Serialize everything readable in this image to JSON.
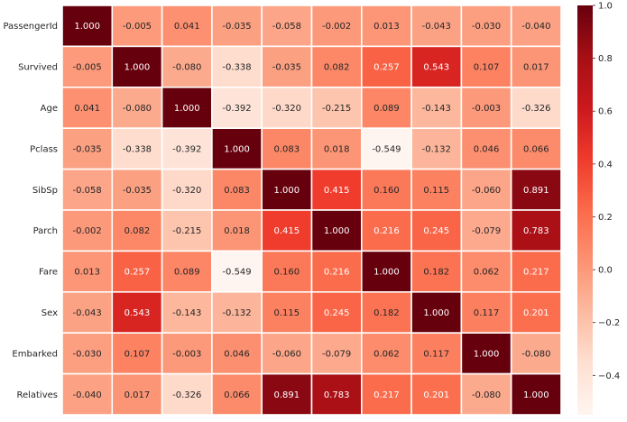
{
  "chart_data": {
    "type": "heatmap",
    "title": "",
    "xlabel": "",
    "ylabel": "",
    "labels": [
      "PassengerId",
      "Survived",
      "Age",
      "Pclass",
      "SibSp",
      "Parch",
      "Fare",
      "Sex",
      "Embarked",
      "Relatives"
    ],
    "values": [
      [
        1.0,
        -0.005,
        0.041,
        -0.035,
        -0.058,
        -0.002,
        0.013,
        -0.043,
        -0.03,
        -0.04
      ],
      [
        -0.005,
        1.0,
        -0.08,
        -0.338,
        -0.035,
        0.082,
        0.257,
        0.543,
        0.107,
        0.017
      ],
      [
        0.041,
        -0.08,
        1.0,
        -0.392,
        -0.32,
        -0.215,
        0.089,
        -0.143,
        -0.003,
        -0.326
      ],
      [
        -0.035,
        -0.338,
        -0.392,
        1.0,
        0.083,
        0.018,
        -0.549,
        -0.132,
        0.046,
        0.066
      ],
      [
        -0.058,
        -0.035,
        -0.32,
        0.083,
        1.0,
        0.415,
        0.16,
        0.115,
        -0.06,
        0.891
      ],
      [
        -0.002,
        0.082,
        -0.215,
        0.018,
        0.415,
        1.0,
        0.216,
        0.245,
        -0.079,
        0.783
      ],
      [
        0.013,
        0.257,
        0.089,
        -0.549,
        0.16,
        0.216,
        1.0,
        0.182,
        0.062,
        0.217
      ],
      [
        -0.043,
        0.543,
        -0.143,
        -0.132,
        0.115,
        0.245,
        0.182,
        1.0,
        0.117,
        0.201
      ],
      [
        -0.03,
        0.107,
        -0.003,
        0.046,
        -0.06,
        -0.079,
        0.062,
        0.117,
        1.0,
        -0.08
      ],
      [
        -0.04,
        0.017,
        -0.326,
        0.066,
        0.891,
        0.783,
        0.217,
        0.201,
        -0.08,
        1.0
      ]
    ],
    "value_format": "3 decimals",
    "colormap": "Reds",
    "color_range": [
      -0.549,
      1.0
    ],
    "colorbar_ticks": [
      -0.4,
      -0.2,
      0.0,
      0.2,
      0.4,
      0.6,
      0.8,
      1.0
    ],
    "colorbar_tick_labels": [
      "−0.4",
      "−0.2",
      "0.0",
      "0.2",
      "0.4",
      "0.6",
      "0.8",
      "1.0"
    ],
    "cell_border_color": "#ffffff",
    "text_color_light": "#ffffff",
    "text_color_dark": "#262626"
  }
}
